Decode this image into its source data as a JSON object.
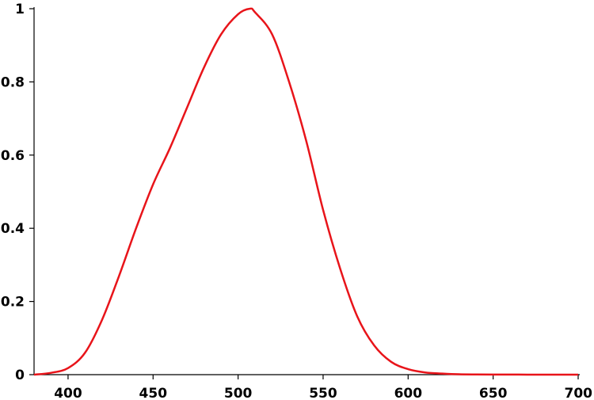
{
  "chart_data": {
    "type": "line",
    "title": "",
    "xlabel": "",
    "ylabel": "",
    "xlim": [
      380,
      700
    ],
    "ylim": [
      0,
      1
    ],
    "grid": false,
    "x_ticks": [
      400,
      450,
      500,
      550,
      600,
      650,
      700
    ],
    "x_tick_labels": [
      "400",
      "450",
      "500",
      "550",
      "600",
      "650",
      "700"
    ],
    "y_ticks": [
      0,
      0.2,
      0.4,
      0.6,
      0.8,
      1
    ],
    "y_tick_labels": [
      "0",
      "0.2",
      "0.4",
      "0.6",
      "0.8",
      "1"
    ],
    "series": [
      {
        "color": "#e8141a",
        "x": [
          380,
          390,
          400,
          410,
          420,
          430,
          440,
          450,
          460,
          470,
          480,
          490,
          500,
          507,
          510,
          520,
          530,
          540,
          550,
          560,
          570,
          580,
          590,
          600,
          610,
          620,
          630,
          640,
          650,
          660,
          670,
          680,
          690,
          700
        ],
        "y": [
          0.0,
          0.005,
          0.018,
          0.06,
          0.15,
          0.27,
          0.4,
          0.52,
          0.62,
          0.73,
          0.84,
          0.93,
          0.985,
          1.0,
          0.99,
          0.93,
          0.8,
          0.64,
          0.45,
          0.29,
          0.16,
          0.08,
          0.035,
          0.015,
          0.006,
          0.003,
          0.001,
          0.0005,
          0.0003,
          0.0002,
          0.0001,
          0.0,
          0.0,
          0.0
        ]
      }
    ]
  }
}
